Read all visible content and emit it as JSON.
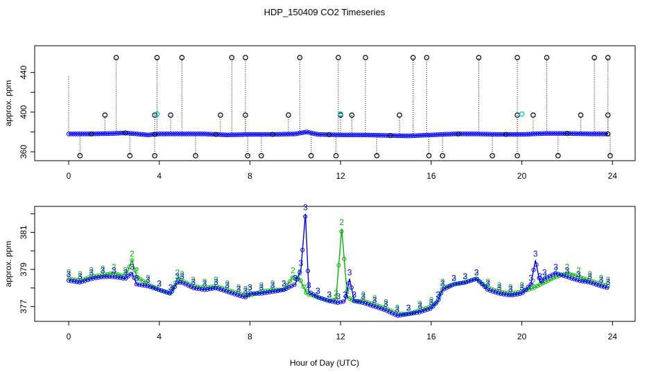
{
  "title": "HDP_150409  CO2 Timeseries",
  "xlabel": "Hour of Day (UTC)",
  "colors": {
    "blue": "#0000ff",
    "green": "#00b400",
    "cyan": "#00d0d0",
    "black": "#000000"
  },
  "chart_data": [
    {
      "type": "scatter",
      "name": "top-panel",
      "ylabel": "approx. ppm",
      "xlim": [
        -1.5,
        25
      ],
      "ylim": [
        351,
        467
      ],
      "x_ticks": [
        0,
        4,
        8,
        12,
        16,
        20,
        24
      ],
      "y_ticks_labeled": [
        360,
        400,
        440
      ],
      "y_ticks_minor": [
        380,
        420
      ],
      "baseline": {
        "x": [
          0,
          1,
          2,
          2.5,
          3,
          3.5,
          4,
          5,
          6,
          7,
          8,
          9,
          10,
          10.5,
          11,
          12,
          13,
          14,
          15,
          16,
          17,
          18,
          19,
          20,
          21,
          22,
          23,
          23.8
        ],
        "y": [
          378,
          378,
          378.5,
          379,
          378,
          377,
          378,
          378,
          378,
          377,
          377.5,
          377.5,
          378,
          380,
          377.5,
          377,
          377,
          376.5,
          376,
          377,
          378,
          378,
          377.5,
          377.5,
          378.5,
          378.5,
          378,
          378
        ]
      },
      "spikes_high": [
        2.1,
        3.9,
        5.0,
        7.2,
        7.8,
        10.2,
        11.9,
        13.1,
        15.2,
        15.8,
        18.1,
        19.8,
        21.1,
        23.2,
        23.8
      ],
      "spikes_mid": [
        1.6,
        3.8,
        4.5,
        6.7,
        7.8,
        9.7,
        12.0,
        12.5,
        14.6,
        19.8,
        20.5,
        22.6,
        23.8
      ],
      "spikes_low": [
        0.5,
        2.7,
        3.8,
        5.6,
        7.9,
        8.5,
        10.7,
        11.8,
        13.6,
        15.9,
        16.5,
        18.7,
        19.8,
        21.6,
        23.9
      ],
      "cyan_points": [
        {
          "x": 3.9,
          "y": 398
        },
        {
          "x": 12.0,
          "y": 398
        },
        {
          "x": 20.0,
          "y": 398
        }
      ]
    },
    {
      "type": "line",
      "name": "bottom-panel",
      "ylabel": "approx. ppm",
      "xlim": [
        -1.5,
        25
      ],
      "ylim": [
        376.2,
        382.4
      ],
      "x_ticks": [
        0,
        4,
        8,
        12,
        16,
        20,
        24
      ],
      "y_ticks_labeled": [
        377,
        379,
        381
      ],
      "y_ticks_minor": [
        378,
        380,
        382
      ],
      "series": [
        {
          "name": "2",
          "color": "green",
          "x": [
            0,
            0.5,
            1,
            1.5,
            2,
            2.5,
            2.8,
            3.0,
            3.5,
            4,
            4.5,
            4.8,
            5,
            5.5,
            6,
            6.5,
            7,
            7.5,
            7.8,
            8.0,
            8.5,
            9,
            9.5,
            9.9,
            10.2,
            10.5,
            11,
            11.5,
            11.8,
            12.05,
            12.3,
            12.6,
            13,
            13.5,
            14,
            14.5,
            15,
            15.5,
            16,
            16.3,
            16.5,
            17,
            17.5,
            18,
            18.5,
            19,
            19.5,
            20,
            20.5,
            21,
            21.5,
            22,
            22.5,
            23,
            23.5,
            23.8
          ],
          "y": [
            378.5,
            378.4,
            378.6,
            378.7,
            378.8,
            378.6,
            379.5,
            378.6,
            378.2,
            377.9,
            377.7,
            378.5,
            378.4,
            378.1,
            378.0,
            378.1,
            377.9,
            377.7,
            377.6,
            377.6,
            377.8,
            377.9,
            377.9,
            378.6,
            378.5,
            377.7,
            377.5,
            377.3,
            377.4,
            381.2,
            377.5,
            377.3,
            377.3,
            377.1,
            376.9,
            376.6,
            376.6,
            376.8,
            377.0,
            377.3,
            378.0,
            378.2,
            378.3,
            378.5,
            378.0,
            377.8,
            377.7,
            377.8,
            378.0,
            378.3,
            378.6,
            378.8,
            378.6,
            378.4,
            378.2,
            378.1
          ]
        },
        {
          "name": "3",
          "color": "blue",
          "x": [
            0,
            0.5,
            1,
            1.5,
            2,
            2.5,
            2.8,
            3.0,
            3.5,
            4,
            4.5,
            4.8,
            5,
            5.5,
            6,
            6.5,
            7,
            7.5,
            7.8,
            8.0,
            8.5,
            9,
            9.5,
            10,
            10.25,
            10.45,
            10.6,
            11,
            11.5,
            11.9,
            12.2,
            12.4,
            12.6,
            13,
            13.5,
            14,
            14.5,
            15,
            15.5,
            16,
            16.3,
            16.5,
            17,
            17.5,
            18,
            18.5,
            19,
            19.5,
            20,
            20.4,
            20.6,
            20.8,
            21,
            21.5,
            22,
            22.5,
            23,
            23.5,
            23.8
          ],
          "y": [
            378.4,
            378.3,
            378.5,
            378.6,
            378.6,
            378.5,
            378.8,
            378.2,
            378.1,
            377.9,
            377.7,
            378.3,
            378.3,
            378.0,
            377.9,
            378.0,
            377.8,
            377.6,
            377.5,
            377.7,
            377.7,
            377.8,
            377.9,
            378.2,
            379.0,
            382.0,
            377.8,
            377.5,
            377.3,
            377.2,
            377.3,
            378.5,
            377.3,
            377.2,
            377.0,
            376.8,
            376.5,
            376.6,
            376.7,
            376.9,
            377.3,
            377.9,
            378.2,
            378.3,
            378.5,
            377.9,
            377.7,
            377.6,
            377.7,
            378.2,
            379.5,
            378.3,
            378.5,
            378.8,
            378.6,
            378.4,
            378.3,
            378.1,
            378.0
          ]
        }
      ]
    }
  ]
}
